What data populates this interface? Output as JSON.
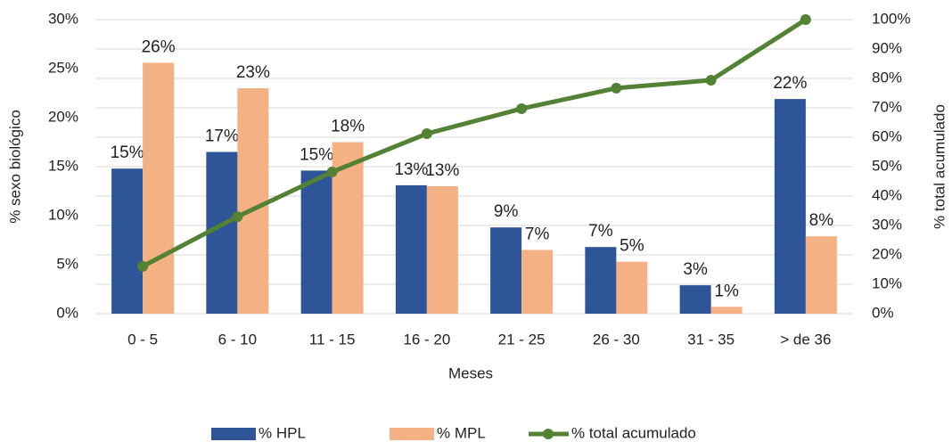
{
  "chart_data": {
    "type": "bar_line",
    "xlabel": "Meses",
    "ylabel": "% sexo biológico",
    "y2label": "% total acumulado",
    "categories": [
      "0 - 5",
      "6 - 10",
      "11 - 15",
      "16 - 20",
      "21 - 25",
      "26 - 30",
      "31 - 35",
      "> de 36"
    ],
    "ylim": [
      0,
      30
    ],
    "yticks": [
      {
        "value": 0,
        "label": "0%"
      },
      {
        "value": 5,
        "label": "5%"
      },
      {
        "value": 10,
        "label": "10%"
      },
      {
        "value": 15,
        "label": "15%"
      },
      {
        "value": 20,
        "label": "20%"
      },
      {
        "value": 25,
        "label": "25%"
      },
      {
        "value": 30,
        "label": "30%"
      }
    ],
    "y2lim": [
      0,
      100
    ],
    "y2ticks": [
      {
        "value": 0,
        "label": "0%"
      },
      {
        "value": 10,
        "label": "10%"
      },
      {
        "value": 20,
        "label": "20%"
      },
      {
        "value": 30,
        "label": "30%"
      },
      {
        "value": 40,
        "label": "40%"
      },
      {
        "value": 50,
        "label": "50%"
      },
      {
        "value": 60,
        "label": "60%"
      },
      {
        "value": 70,
        "label": "70%"
      },
      {
        "value": 80,
        "label": "80%"
      },
      {
        "value": 90,
        "label": "90%"
      },
      {
        "value": 100,
        "label": "100%"
      }
    ],
    "grid": true,
    "legend": "bottom",
    "series": [
      {
        "name": "% HPL",
        "type": "bar",
        "color": "#2e5597",
        "values": [
          14.8,
          16.5,
          14.6,
          13.1,
          8.8,
          6.8,
          2.9,
          21.9
        ],
        "value_labels": [
          "15%",
          "17%",
          "15%",
          "13%",
          "9%",
          "7%",
          "3%",
          "22%"
        ]
      },
      {
        "name": "% MPL",
        "type": "bar",
        "color": "#f4b183",
        "values": [
          25.6,
          23,
          17.5,
          13,
          6.5,
          5.3,
          0.7,
          7.9
        ],
        "value_labels": [
          "26%",
          "23%",
          "18%",
          "13%",
          "7%",
          "5%",
          "1%",
          "8%"
        ]
      },
      {
        "name": "% total acumulado",
        "type": "line",
        "axis": "y2",
        "color": "#548235",
        "values": [
          16.1,
          33,
          48.2,
          61.2,
          69.7,
          76.7,
          79.4,
          100
        ]
      }
    ]
  }
}
